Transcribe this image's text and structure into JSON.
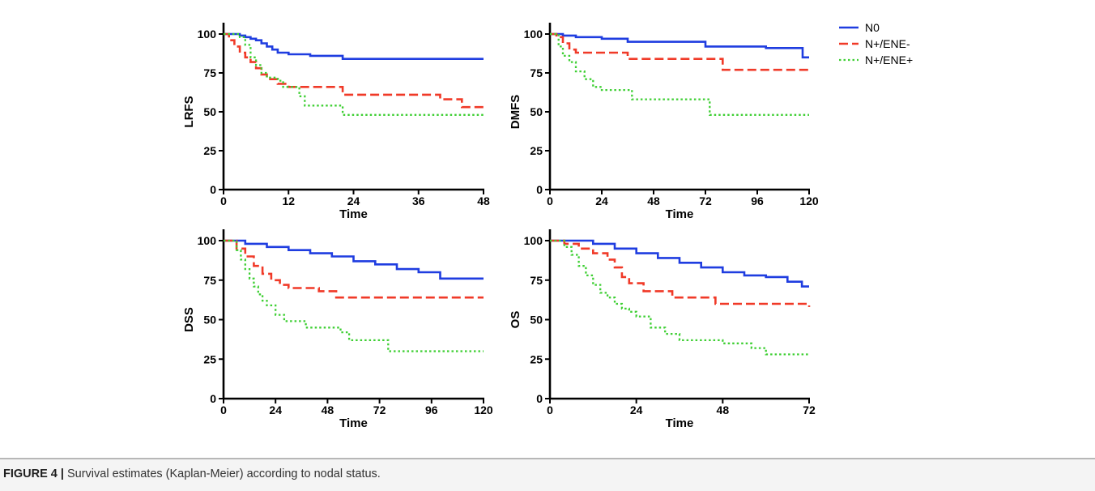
{
  "caption": {
    "label": "FIGURE 4 |",
    "text": " Survival estimates (Kaplan-Meier) according to nodal status."
  },
  "legend": {
    "placement": "top-right",
    "entries": [
      {
        "label": "N0",
        "color": "#1f3de0",
        "dash": "solid"
      },
      {
        "label": "N+/ENE-",
        "color": "#f03a28",
        "dash": "dashed"
      },
      {
        "label": "N+/ENE+",
        "color": "#3ecf33",
        "dash": "dotted"
      }
    ]
  },
  "chart_data": [
    {
      "type": "line",
      "step": true,
      "ylabel": "LRFS",
      "xlabel": "Time",
      "xlim": [
        0,
        48
      ],
      "ylim": [
        0,
        100
      ],
      "xticks": [
        0,
        12,
        24,
        36,
        48
      ],
      "yticks": [
        0,
        25,
        50,
        75,
        100
      ],
      "series": [
        {
          "name": "N0",
          "x": [
            0,
            2,
            3,
            4,
            5,
            6,
            7,
            8,
            9,
            10,
            12,
            16,
            22,
            48
          ],
          "y": [
            100,
            100,
            99,
            98,
            97,
            96,
            94,
            92,
            90,
            88,
            87,
            86,
            84,
            84
          ]
        },
        {
          "name": "N+/ENE-",
          "x": [
            0,
            1,
            2,
            3,
            4,
            5,
            6,
            7,
            8,
            10,
            12,
            22,
            40,
            44,
            48
          ],
          "y": [
            100,
            96,
            92,
            88,
            85,
            82,
            78,
            74,
            71,
            68,
            66,
            61,
            58,
            53,
            53
          ]
        },
        {
          "name": "N+/ENE+",
          "x": [
            0,
            3,
            4,
            5,
            6,
            7,
            8,
            10,
            11,
            14,
            15,
            22,
            48
          ],
          "y": [
            100,
            98,
            93,
            85,
            80,
            75,
            72,
            70,
            66,
            60,
            54,
            48,
            48
          ]
        }
      ]
    },
    {
      "type": "line",
      "step": true,
      "ylabel": "DMFS",
      "xlabel": "Time",
      "xlim": [
        0,
        120
      ],
      "ylim": [
        0,
        100
      ],
      "xticks": [
        0,
        24,
        48,
        72,
        96,
        120
      ],
      "yticks": [
        0,
        25,
        50,
        75,
        100
      ],
      "series": [
        {
          "name": "N0",
          "x": [
            0,
            6,
            12,
            24,
            36,
            72,
            100,
            115,
            117,
            120
          ],
          "y": [
            100,
            99,
            98,
            97,
            95,
            92,
            91,
            91,
            85,
            85
          ]
        },
        {
          "name": "N+/ENE-",
          "x": [
            0,
            3,
            6,
            9,
            12,
            36,
            80,
            120
          ],
          "y": [
            100,
            98,
            94,
            90,
            88,
            84,
            77,
            77
          ]
        },
        {
          "name": "N+/ENE+",
          "x": [
            0,
            4,
            6,
            9,
            12,
            16,
            20,
            24,
            38,
            72,
            74,
            120
          ],
          "y": [
            100,
            92,
            86,
            82,
            76,
            71,
            66,
            64,
            58,
            58,
            48,
            48
          ]
        }
      ]
    },
    {
      "type": "line",
      "step": true,
      "ylabel": "DSS",
      "xlabel": "Time",
      "xlim": [
        0,
        120
      ],
      "ylim": [
        0,
        100
      ],
      "xticks": [
        0,
        24,
        48,
        72,
        96,
        120
      ],
      "yticks": [
        0,
        25,
        50,
        75,
        100
      ],
      "series": [
        {
          "name": "N0",
          "x": [
            0,
            10,
            20,
            30,
            40,
            50,
            60,
            70,
            80,
            90,
            100,
            120
          ],
          "y": [
            100,
            98,
            96,
            94,
            92,
            90,
            87,
            85,
            82,
            80,
            76,
            76
          ]
        },
        {
          "name": "N+/ENE-",
          "x": [
            0,
            6,
            10,
            14,
            18,
            22,
            26,
            30,
            44,
            52,
            120
          ],
          "y": [
            100,
            95,
            90,
            84,
            79,
            75,
            72,
            70,
            68,
            64,
            64
          ]
        },
        {
          "name": "N+/ENE+",
          "x": [
            0,
            6,
            8,
            10,
            12,
            14,
            16,
            18,
            20,
            24,
            28,
            38,
            54,
            58,
            76,
            120
          ],
          "y": [
            100,
            94,
            88,
            82,
            76,
            71,
            66,
            62,
            59,
            53,
            49,
            45,
            42,
            37,
            30,
            30
          ]
        }
      ]
    },
    {
      "type": "line",
      "step": true,
      "ylabel": "OS",
      "xlabel": "Time",
      "xlim": [
        0,
        72
      ],
      "ylim": [
        0,
        100
      ],
      "xticks": [
        0,
        24,
        48,
        72
      ],
      "yticks": [
        0,
        25,
        50,
        75,
        100
      ],
      "series": [
        {
          "name": "N0",
          "x": [
            0,
            6,
            12,
            18,
            24,
            30,
            36,
            42,
            48,
            54,
            60,
            66,
            70,
            72
          ],
          "y": [
            100,
            100,
            98,
            95,
            92,
            89,
            86,
            83,
            80,
            78,
            77,
            74,
            71,
            71
          ]
        },
        {
          "name": "N+/ENE-",
          "x": [
            0,
            4,
            8,
            12,
            16,
            18,
            20,
            22,
            26,
            34,
            46,
            72
          ],
          "y": [
            100,
            98,
            95,
            92,
            88,
            83,
            77,
            73,
            68,
            64,
            60,
            58
          ]
        },
        {
          "name": "N+/ENE+",
          "x": [
            0,
            4,
            6,
            8,
            10,
            12,
            14,
            16,
            18,
            20,
            22,
            24,
            28,
            32,
            36,
            48,
            56,
            60,
            72
          ],
          "y": [
            100,
            96,
            91,
            84,
            78,
            72,
            67,
            64,
            60,
            57,
            55,
            52,
            45,
            41,
            37,
            35,
            32,
            28,
            28
          ]
        }
      ]
    }
  ]
}
